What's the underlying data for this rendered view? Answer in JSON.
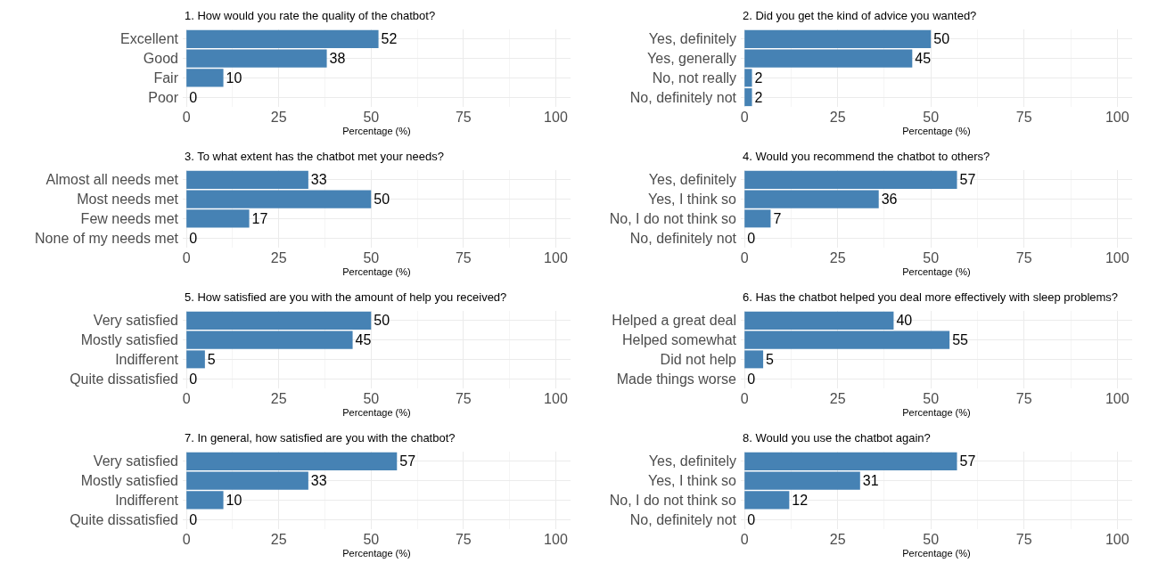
{
  "chart_data": [
    {
      "type": "bar",
      "orientation": "horizontal",
      "title": "1. How would you rate the quality of the chatbot?",
      "xlabel": "Percentage (%)",
      "categories": [
        "Excellent",
        "Good",
        "Fair",
        "Poor"
      ],
      "values": [
        52,
        38,
        10,
        0
      ],
      "color": "#4682b4",
      "xlim": [
        -1,
        104
      ],
      "xticks": [
        0,
        25,
        50,
        75,
        100
      ],
      "grid": true,
      "data_labels": true
    },
    {
      "type": "bar",
      "orientation": "horizontal",
      "title": "2. Did you get the kind of advice you wanted?",
      "xlabel": "Percentage (%)",
      "categories": [
        "Yes, definitely",
        "Yes, generally",
        "No, not really",
        "No, definitely not"
      ],
      "values": [
        50,
        45,
        2,
        2
      ],
      "color": "#4682b4",
      "xlim": [
        -1,
        104
      ],
      "xticks": [
        0,
        25,
        50,
        75,
        100
      ],
      "grid": true,
      "data_labels": true
    },
    {
      "type": "bar",
      "orientation": "horizontal",
      "title": "3. To what extent has the chatbot met your needs?",
      "xlabel": "Percentage (%)",
      "categories": [
        "Almost all needs met",
        "Most needs met",
        "Few needs met",
        "None of my needs met"
      ],
      "values": [
        33,
        50,
        17,
        0
      ],
      "color": "#4682b4",
      "xlim": [
        -1,
        104
      ],
      "xticks": [
        0,
        25,
        50,
        75,
        100
      ],
      "grid": true,
      "data_labels": true
    },
    {
      "type": "bar",
      "orientation": "horizontal",
      "title": "4. Would you recommend the chatbot to others?",
      "xlabel": "Percentage (%)",
      "categories": [
        "Yes, definitely",
        "Yes, I think so",
        "No, I do not think so",
        "No, definitely not"
      ],
      "values": [
        57,
        36,
        7,
        0
      ],
      "color": "#4682b4",
      "xlim": [
        -1,
        104
      ],
      "xticks": [
        0,
        25,
        50,
        75,
        100
      ],
      "grid": true,
      "data_labels": true
    },
    {
      "type": "bar",
      "orientation": "horizontal",
      "title": "5. How satisfied are you with the amount of help you received?",
      "xlabel": "Percentage (%)",
      "categories": [
        "Very satisfied",
        "Mostly satisfied",
        "Indifferent",
        "Quite dissatisfied"
      ],
      "values": [
        50,
        45,
        5,
        0
      ],
      "color": "#4682b4",
      "xlim": [
        -1,
        104
      ],
      "xticks": [
        0,
        25,
        50,
        75,
        100
      ],
      "grid": true,
      "data_labels": true
    },
    {
      "type": "bar",
      "orientation": "horizontal",
      "title": "6. Has the chatbot helped you deal more effectively with sleep problems?",
      "xlabel": "Percentage (%)",
      "categories": [
        "Helped a great deal",
        "Helped somewhat",
        "Did not help",
        "Made things worse"
      ],
      "values": [
        40,
        55,
        5,
        0
      ],
      "color": "#4682b4",
      "xlim": [
        -1,
        104
      ],
      "xticks": [
        0,
        25,
        50,
        75,
        100
      ],
      "grid": true,
      "data_labels": true
    },
    {
      "type": "bar",
      "orientation": "horizontal",
      "title": "7. In general, how satisfied are you with the chatbot?",
      "xlabel": "Percentage (%)",
      "categories": [
        "Very satisfied",
        "Mostly satisfied",
        "Indifferent",
        "Quite dissatisfied"
      ],
      "values": [
        57,
        33,
        10,
        0
      ],
      "color": "#4682b4",
      "xlim": [
        -1,
        104
      ],
      "xticks": [
        0,
        25,
        50,
        75,
        100
      ],
      "grid": true,
      "data_labels": true
    },
    {
      "type": "bar",
      "orientation": "horizontal",
      "title": "8. Would you use the chatbot again?",
      "xlabel": "Percentage (%)",
      "categories": [
        "Yes, definitely",
        "Yes, I think so",
        "No, I do not think so",
        "No, definitely not"
      ],
      "values": [
        57,
        31,
        12,
        0
      ],
      "color": "#4682b4",
      "xlim": [
        -1,
        104
      ],
      "xticks": [
        0,
        25,
        50,
        75,
        100
      ],
      "grid": true,
      "data_labels": true
    }
  ]
}
